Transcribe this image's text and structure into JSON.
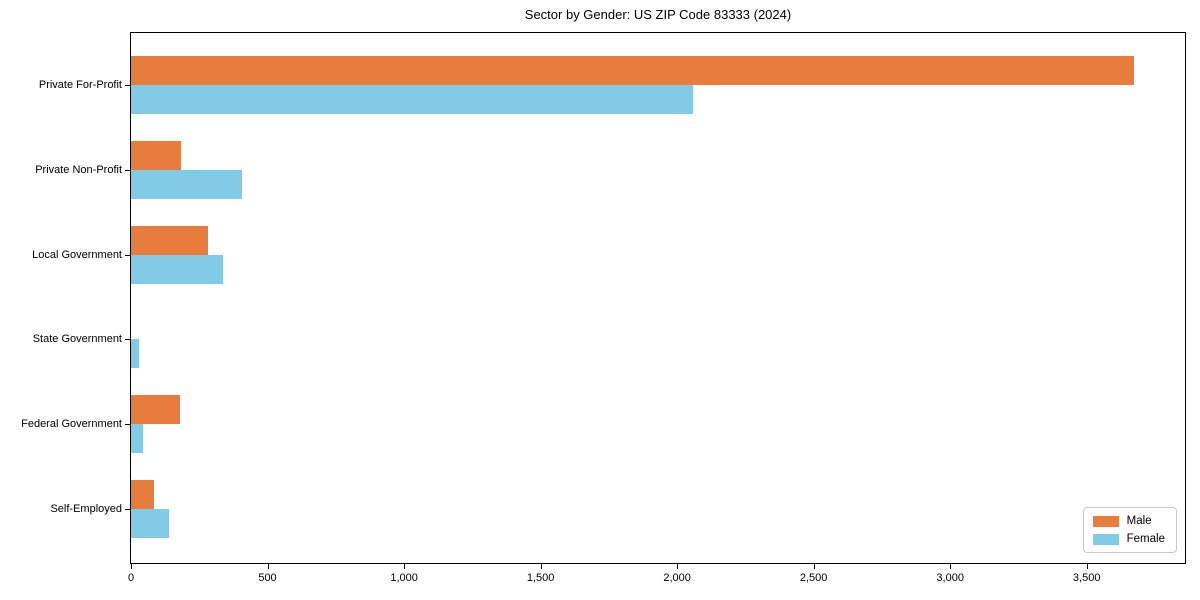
{
  "chart_data": {
    "type": "bar",
    "orientation": "horizontal",
    "title": "Sector by Gender: US ZIP Code 83333 (2024)",
    "categories": [
      "Private For-Profit",
      "Private Non-Profit",
      "Local Government",
      "State Government",
      "Federal Government",
      "Self-Employed"
    ],
    "series": [
      {
        "name": "Male",
        "color": "#e87c3c",
        "values": [
          3674,
          183,
          283,
          0,
          179,
          85
        ]
      },
      {
        "name": "Female",
        "color": "#82cbe6",
        "values": [
          2057,
          406,
          337,
          29,
          45,
          140
        ]
      }
    ],
    "xlabel": "",
    "ylabel": "",
    "xlim": [
      0,
      3860
    ],
    "xticks": [
      0,
      500,
      1000,
      1500,
      2000,
      2500,
      3000,
      3500
    ],
    "xtick_labels": [
      "0",
      "500",
      "1,000",
      "1,500",
      "2,000",
      "2,500",
      "3,000",
      "3,500"
    ],
    "grid": false,
    "legend": {
      "position": "lower right",
      "entries": [
        "Male",
        "Female"
      ]
    }
  }
}
